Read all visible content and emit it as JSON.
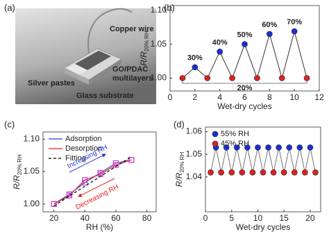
{
  "photo": {
    "panel_label": "(a)",
    "labels": {
      "wire": "Copper wire",
      "film": [
        "GO/PDAC",
        "multilayers"
      ],
      "paste": "Silver pastes",
      "glass": "Glass substrate"
    }
  },
  "chart_data": [
    {
      "type": "line",
      "panel_label": "(b)",
      "x": [
        1,
        2,
        3,
        4,
        5,
        6,
        7,
        8,
        9,
        10,
        11
      ],
      "values": [
        1.0,
        1.016,
        1.0,
        1.039,
        1.0,
        1.05,
        1.0,
        1.065,
        1.0,
        1.069,
        1.0
      ],
      "point_colors": [
        "#e02020",
        "#1a2fd8",
        "#e02020",
        "#1a2fd8",
        "#e02020",
        "#1a2fd8",
        "#e02020",
        "#1a2fd8",
        "#e02020",
        "#1a2fd8",
        "#e02020"
      ],
      "line_color": "#333333",
      "xlim": [
        0,
        12
      ],
      "xticks": [
        0,
        2,
        4,
        6,
        8,
        10,
        12
      ],
      "ylim": [
        0.981,
        1.107
      ],
      "yticks": [
        {
          "value": 1.0,
          "label": "1.00"
        },
        {
          "value": 1.05,
          "label": "1.05"
        },
        {
          "value": 1.1,
          "label": "1.10"
        }
      ],
      "x_label": "Wet-dry cycles",
      "y_label": {
        "main": "R/R",
        "sub": "20% RH"
      },
      "annotations": [
        "30%",
        "40%",
        "50%",
        "60%",
        "70%"
      ],
      "baseline_label": "20%"
    },
    {
      "type": "line",
      "panel_label": "(c)",
      "legend": "upper left",
      "marker_color": "#d040d0",
      "series": [
        {
          "name": "Adsorption",
          "color": "#2a3bd6",
          "linestyle": "solid",
          "marker": "square",
          "x": [
            20,
            30,
            40,
            50,
            60,
            70
          ],
          "values": [
            1.0,
            1.015,
            1.033,
            1.048,
            1.063,
            1.068
          ]
        },
        {
          "name": "Desorption",
          "color": "#e02020",
          "linestyle": "solid",
          "marker": "square",
          "x": [
            20,
            30,
            40,
            50,
            60,
            70
          ],
          "values": [
            1.0,
            1.013,
            1.037,
            1.046,
            1.06,
            1.068
          ]
        },
        {
          "name": "Fitting",
          "color": "#000000",
          "linestyle": "dashed",
          "marker": "none",
          "x": [
            20,
            70
          ],
          "values": [
            0.997,
            1.073
          ]
        }
      ],
      "xlim": [
        13,
        86
      ],
      "xticks": [
        20,
        40,
        60,
        80
      ],
      "ylim": [
        0.988,
        1.111
      ],
      "yticks": [
        {
          "value": 1.0,
          "label": "1.00"
        },
        {
          "value": 1.05,
          "label": "1.05"
        },
        {
          "value": 1.1,
          "label": "1.10"
        }
      ],
      "x_label": "RH (%)",
      "y_label": {
        "main": "R/R",
        "sub": "20% RH"
      },
      "annotations": [
        "Increasing RH",
        "Decreasing RH"
      ]
    },
    {
      "type": "line",
      "panel_label": "(d)",
      "legend": "upper left",
      "connect_series": true,
      "line_color": "#555555",
      "series": [
        {
          "name": "55% RH",
          "color": "#1a2fd8",
          "linestyle": "none",
          "marker": "circle",
          "x": [
            2,
            4,
            6,
            8,
            10,
            12,
            14,
            16,
            18,
            20
          ],
          "values": [
            1.053,
            1.053,
            1.053,
            1.053,
            1.053,
            1.053,
            1.053,
            1.053,
            1.053,
            1.053
          ]
        },
        {
          "name": "45% RH",
          "color": "#e02020",
          "linestyle": "none",
          "marker": "circle",
          "x": [
            1,
            3,
            5,
            7,
            9,
            11,
            13,
            15,
            17,
            19,
            21
          ],
          "values": [
            1.042,
            1.042,
            1.042,
            1.042,
            1.042,
            1.042,
            1.042,
            1.042,
            1.042,
            1.042,
            1.042
          ]
        }
      ],
      "xlim": [
        0,
        22
      ],
      "xticks": [
        0,
        5,
        10,
        15,
        20
      ],
      "ylim": [
        1.0246,
        1.062
      ],
      "yticks": [
        {
          "value": 1.04,
          "label": "1.04"
        },
        {
          "value": 1.05,
          "label": "1.05"
        },
        {
          "value": 1.06,
          "label": "1.06"
        }
      ],
      "x_label": "Wet-dry cycles",
      "y_label": {
        "main": "R/R",
        "sub": "20% RH"
      }
    }
  ]
}
